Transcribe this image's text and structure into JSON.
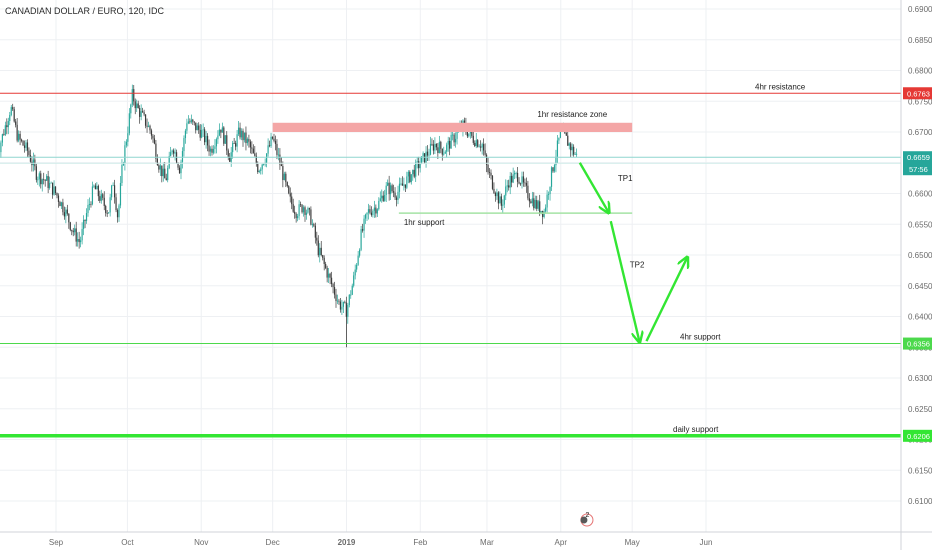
{
  "chart_data": {
    "type": "candlestick",
    "title": "CANADIAN DOLLAR / EURO, 120, IDC",
    "y_ticks": [
      "0.6900",
      "0.6850",
      "0.6800",
      "0.6750",
      "0.6700",
      "0.6650",
      "0.6600",
      "0.6550",
      "0.6500",
      "0.6450",
      "0.6400",
      "0.6350",
      "0.6300",
      "0.6250",
      "0.6200",
      "0.6150",
      "0.6100"
    ],
    "ylim": [
      0.6045,
      0.6915
    ],
    "x_ticks": [
      {
        "label": "Sep",
        "x": "2018-09-01"
      },
      {
        "label": "Oct",
        "x": "2018-10-01"
      },
      {
        "label": "Nov",
        "x": "2018-11-01"
      },
      {
        "label": "Dec",
        "x": "2018-12-01"
      },
      {
        "label": "2019",
        "x": "2019-01-01"
      },
      {
        "label": "Feb",
        "x": "2019-02-01"
      },
      {
        "label": "Mar",
        "x": "2019-03-01"
      },
      {
        "label": "Apr",
        "x": "2019-04-01"
      },
      {
        "label": "May",
        "x": "2019-05-01"
      },
      {
        "label": "Jun",
        "x": "2019-06-01"
      }
    ],
    "price_path": [
      [
        "2018-08-07",
        0.666
      ],
      [
        "2018-08-10",
        0.67
      ],
      [
        "2018-08-13",
        0.674
      ],
      [
        "2018-08-16",
        0.669
      ],
      [
        "2018-08-20",
        0.667
      ],
      [
        "2018-08-24",
        0.663
      ],
      [
        "2018-08-28",
        0.662
      ],
      [
        "2018-09-01",
        0.66
      ],
      [
        "2018-09-05",
        0.657
      ],
      [
        "2018-09-08",
        0.654
      ],
      [
        "2018-09-11",
        0.652
      ],
      [
        "2018-09-14",
        0.657
      ],
      [
        "2018-09-17",
        0.661
      ],
      [
        "2018-09-20",
        0.659
      ],
      [
        "2018-09-23",
        0.657
      ],
      [
        "2018-09-25",
        0.662
      ],
      [
        "2018-09-27",
        0.656
      ],
      [
        "2018-09-29",
        0.665
      ],
      [
        "2018-10-01",
        0.67
      ],
      [
        "2018-10-03",
        0.676
      ],
      [
        "2018-10-05",
        0.674
      ],
      [
        "2018-10-08",
        0.672
      ],
      [
        "2018-10-11",
        0.67
      ],
      [
        "2018-10-14",
        0.665
      ],
      [
        "2018-10-17",
        0.662
      ],
      [
        "2018-10-20",
        0.668
      ],
      [
        "2018-10-23",
        0.664
      ],
      [
        "2018-10-26",
        0.672
      ],
      [
        "2018-10-29",
        0.671
      ],
      [
        "2018-11-01",
        0.67
      ],
      [
        "2018-11-05",
        0.667
      ],
      [
        "2018-11-09",
        0.671
      ],
      [
        "2018-11-13",
        0.666
      ],
      [
        "2018-11-17",
        0.67
      ],
      [
        "2018-11-21",
        0.668
      ],
      [
        "2018-11-25",
        0.664
      ],
      [
        "2018-11-28",
        0.666
      ],
      [
        "2018-12-01",
        0.669
      ],
      [
        "2018-12-04",
        0.665
      ],
      [
        "2018-12-08",
        0.659
      ],
      [
        "2018-12-11",
        0.657
      ],
      [
        "2018-12-14",
        0.658
      ],
      [
        "2018-12-17",
        0.656
      ],
      [
        "2018-12-20",
        0.651
      ],
      [
        "2018-12-23",
        0.648
      ],
      [
        "2018-12-26",
        0.645
      ],
      [
        "2018-12-29",
        0.642
      ],
      [
        "2019-01-01",
        0.641
      ],
      [
        "2019-01-04",
        0.646
      ],
      [
        "2019-01-07",
        0.653
      ],
      [
        "2019-01-10",
        0.657
      ],
      [
        "2019-01-14",
        0.658
      ],
      [
        "2019-01-18",
        0.661
      ],
      [
        "2019-01-22",
        0.66
      ],
      [
        "2019-01-26",
        0.662
      ],
      [
        "2019-01-30",
        0.664
      ],
      [
        "2019-02-03",
        0.666
      ],
      [
        "2019-02-07",
        0.668
      ],
      [
        "2019-02-11",
        0.667
      ],
      [
        "2019-02-15",
        0.669
      ],
      [
        "2019-02-19",
        0.671
      ],
      [
        "2019-02-23",
        0.669
      ],
      [
        "2019-02-27",
        0.668
      ],
      [
        "2019-03-01",
        0.664
      ],
      [
        "2019-03-04",
        0.661
      ],
      [
        "2019-03-07",
        0.658
      ],
      [
        "2019-03-10",
        0.662
      ],
      [
        "2019-03-14",
        0.663
      ],
      [
        "2019-03-18",
        0.66
      ],
      [
        "2019-03-22",
        0.658
      ],
      [
        "2019-03-25",
        0.657
      ],
      [
        "2019-03-28",
        0.663
      ],
      [
        "2019-04-01",
        0.67
      ],
      [
        "2019-04-03",
        0.669
      ],
      [
        "2019-04-06",
        0.667
      ],
      [
        "2019-04-08",
        0.6659
      ]
    ],
    "price_badge": "0.6659",
    "countdown": "57:56",
    "levels": [
      {
        "name": "4hr resistance",
        "value": 0.6763,
        "badge": "0.6763",
        "color": "#e53935"
      },
      {
        "name": "4hr support",
        "value": 0.6356,
        "badge": "0.6356",
        "color": "#4cd94c"
      },
      {
        "name": "daily support",
        "value": 0.6206,
        "badge": "0.6206",
        "color": "#33e633"
      }
    ],
    "resistance_zone": {
      "name": "1hr resistance zone",
      "from": "2018-12-01",
      "to": "2019-05-01",
      "top": 0.6715,
      "bottom": 0.67,
      "color": "#f4a6a6"
    },
    "support_1hr": {
      "name": "1hr support",
      "from": "2019-01-23",
      "to": "2019-05-01",
      "value": 0.6568
    },
    "projection": {
      "color": "#33e633",
      "tp1_label": "TP1",
      "tp2_label": "TP2",
      "points": [
        [
          "2019-04-09",
          0.665,
          "2019-04-21",
          0.657
        ],
        [
          "2019-04-22",
          0.6555,
          "2019-05-04",
          0.636
        ],
        [
          "2019-05-07",
          0.636,
          "2019-05-24",
          0.6495
        ]
      ]
    },
    "events_badge": "2"
  }
}
